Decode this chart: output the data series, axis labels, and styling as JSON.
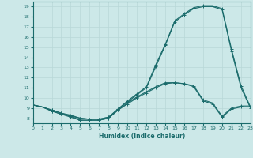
{
  "xlabel": "Humidex (Indice chaleur)",
  "xlim": [
    0,
    23
  ],
  "ylim": [
    7.5,
    19.5
  ],
  "xticks": [
    0,
    1,
    2,
    3,
    4,
    5,
    6,
    7,
    8,
    9,
    10,
    11,
    12,
    13,
    14,
    15,
    16,
    17,
    18,
    19,
    20,
    21,
    22,
    23
  ],
  "yticks": [
    8,
    9,
    10,
    11,
    12,
    13,
    14,
    15,
    16,
    17,
    18,
    19
  ],
  "bg_color": "#cce8e8",
  "grid_color": "#b8d8d8",
  "line_color": "#1a6b6b",
  "line1_x": [
    0,
    1,
    2,
    3,
    4,
    5,
    6,
    7,
    8,
    9,
    10,
    11,
    12,
    13,
    14,
    15,
    16,
    17,
    18,
    19,
    20,
    21,
    22,
    23
  ],
  "line1_y": [
    9.3,
    9.1,
    8.8,
    8.5,
    8.3,
    8.0,
    7.9,
    7.9,
    8.1,
    8.9,
    9.7,
    10.4,
    11.1,
    13.3,
    15.3,
    17.6,
    18.3,
    18.9,
    19.1,
    19.1,
    18.8,
    14.8,
    11.2,
    9.1
  ],
  "line2_x": [
    0,
    1,
    2,
    3,
    4,
    5,
    6,
    7,
    8,
    9,
    10,
    11,
    12,
    13,
    14,
    15,
    16,
    17,
    18,
    19,
    20,
    21,
    22,
    23
  ],
  "line2_y": [
    9.3,
    9.1,
    8.8,
    8.5,
    8.2,
    8.0,
    7.9,
    7.9,
    8.1,
    8.9,
    9.6,
    10.3,
    11.0,
    13.1,
    15.2,
    17.5,
    18.2,
    18.8,
    19.0,
    19.0,
    18.7,
    14.6,
    11.0,
    9.0
  ],
  "line3_x": [
    0,
    1,
    2,
    3,
    4,
    5,
    6,
    7,
    8,
    9,
    10,
    11,
    12,
    13,
    14,
    15,
    16,
    17,
    18,
    19,
    20,
    21,
    22,
    23
  ],
  "line3_y": [
    9.3,
    9.1,
    8.7,
    8.4,
    8.2,
    7.8,
    7.8,
    7.8,
    8.0,
    8.8,
    9.5,
    10.1,
    10.6,
    11.1,
    11.5,
    11.5,
    11.4,
    11.2,
    9.8,
    9.5,
    8.2,
    9.0,
    9.2,
    9.2
  ],
  "line4_x": [
    0,
    1,
    2,
    3,
    4,
    5,
    6,
    7,
    8,
    9,
    10,
    11,
    12,
    13,
    14,
    15,
    16,
    17,
    18,
    19,
    20,
    21,
    22,
    23
  ],
  "line4_y": [
    9.3,
    9.1,
    8.7,
    8.4,
    8.1,
    7.8,
    7.8,
    7.8,
    8.0,
    8.8,
    9.4,
    10.0,
    10.5,
    11.0,
    11.4,
    11.5,
    11.4,
    11.1,
    9.7,
    9.4,
    8.1,
    8.9,
    9.1,
    9.1
  ]
}
